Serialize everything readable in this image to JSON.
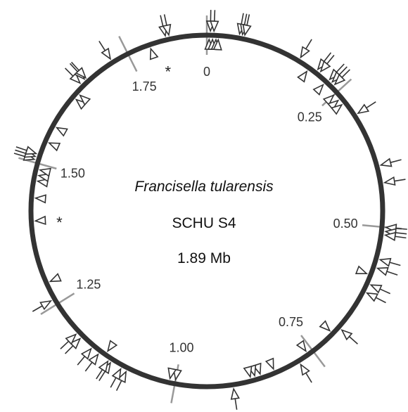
{
  "title": {
    "organism": "Francisella tularensis",
    "strain": "SCHU S4",
    "size": "1.89 Mb"
  },
  "genome_length_mb": 1.89,
  "colors": {
    "circle": "#333333",
    "scale_tick": "#999999",
    "marker": "#333333",
    "text": "#111111"
  },
  "scale_ticks": [
    {
      "position_mb": 0.0,
      "label": "0"
    },
    {
      "position_mb": 0.25,
      "label": "0.25"
    },
    {
      "position_mb": 0.5,
      "label": "0.50"
    },
    {
      "position_mb": 0.75,
      "label": "0.75"
    },
    {
      "position_mb": 1.0,
      "label": "1.00"
    },
    {
      "position_mb": 1.25,
      "label": "1.25"
    },
    {
      "position_mb": 1.5,
      "label": "1.50"
    },
    {
      "position_mb": 1.75,
      "label": "1.75"
    }
  ],
  "asterisks": [
    {
      "position_mb": 1.81,
      "label": "*"
    },
    {
      "position_mb": 1.4,
      "label": "*"
    }
  ],
  "markers": [
    {
      "pos": 0.004,
      "strand": "in"
    },
    {
      "pos": 0.01,
      "strand": "in"
    },
    {
      "pos": 0.016,
      "strand": "in"
    },
    {
      "pos": 0.02,
      "strand": "in"
    },
    {
      "pos": 0.006,
      "strand": "out"
    },
    {
      "pos": 0.012,
      "strand": "out"
    },
    {
      "pos": 0.055,
      "strand": "out"
    },
    {
      "pos": 0.06,
      "strand": "out"
    },
    {
      "pos": 0.064,
      "strand": "out"
    },
    {
      "pos": 0.165,
      "strand": "out"
    },
    {
      "pos": 0.187,
      "strand": "in"
    },
    {
      "pos": 0.2,
      "strand": "out"
    },
    {
      "pos": 0.206,
      "strand": "out"
    },
    {
      "pos": 0.226,
      "strand": "out"
    },
    {
      "pos": 0.232,
      "strand": "out"
    },
    {
      "pos": 0.238,
      "strand": "out"
    },
    {
      "pos": 0.224,
      "strand": "in"
    },
    {
      "pos": 0.25,
      "strand": "in"
    },
    {
      "pos": 0.262,
      "strand": "in"
    },
    {
      "pos": 0.272,
      "strand": "in"
    },
    {
      "pos": 0.3,
      "strand": "out"
    },
    {
      "pos": 0.395,
      "strand": "out"
    },
    {
      "pos": 0.425,
      "strand": "out"
    },
    {
      "pos": 0.5,
      "strand": "out"
    },
    {
      "pos": 0.507,
      "strand": "out"
    },
    {
      "pos": 0.513,
      "strand": "out"
    },
    {
      "pos": 0.555,
      "strand": "out"
    },
    {
      "pos": 0.57,
      "strand": "out"
    },
    {
      "pos": 0.585,
      "strand": "in"
    },
    {
      "pos": 0.6,
      "strand": "out"
    },
    {
      "pos": 0.615,
      "strand": "out"
    },
    {
      "pos": 0.69,
      "strand": "out"
    },
    {
      "pos": 0.705,
      "strand": "in"
    },
    {
      "pos": 0.76,
      "strand": "in"
    },
    {
      "pos": 0.78,
      "strand": "out"
    },
    {
      "pos": 0.825,
      "strand": "in"
    },
    {
      "pos": 0.85,
      "strand": "in"
    },
    {
      "pos": 0.86,
      "strand": "in"
    },
    {
      "pos": 0.868,
      "strand": "in"
    },
    {
      "pos": 0.9,
      "strand": "out"
    },
    {
      "pos": 1.0,
      "strand": "in"
    },
    {
      "pos": 1.01,
      "strand": "in"
    },
    {
      "pos": 1.085,
      "strand": "out"
    },
    {
      "pos": 1.095,
      "strand": "out"
    },
    {
      "pos": 1.115,
      "strand": "out"
    },
    {
      "pos": 1.12,
      "strand": "out"
    },
    {
      "pos": 1.14,
      "strand": "out"
    },
    {
      "pos": 1.155,
      "strand": "out"
    },
    {
      "pos": 1.18,
      "strand": "out"
    },
    {
      "pos": 1.19,
      "strand": "out"
    },
    {
      "pos": 1.13,
      "strand": "in"
    },
    {
      "pos": 1.26,
      "strand": "out"
    },
    {
      "pos": 1.29,
      "strand": "in"
    },
    {
      "pos": 1.4,
      "strand": "in"
    },
    {
      "pos": 1.44,
      "strand": "in"
    },
    {
      "pos": 1.47,
      "strand": "in"
    },
    {
      "pos": 1.48,
      "strand": "in"
    },
    {
      "pos": 1.49,
      "strand": "in"
    },
    {
      "pos": 1.505,
      "strand": "out"
    },
    {
      "pos": 1.51,
      "strand": "out"
    },
    {
      "pos": 1.515,
      "strand": "out"
    },
    {
      "pos": 1.54,
      "strand": "in"
    },
    {
      "pos": 1.57,
      "strand": "in"
    },
    {
      "pos": 1.63,
      "strand": "in"
    },
    {
      "pos": 1.64,
      "strand": "in"
    },
    {
      "pos": 1.655,
      "strand": "out"
    },
    {
      "pos": 1.665,
      "strand": "out"
    },
    {
      "pos": 1.668,
      "strand": "out"
    },
    {
      "pos": 1.72,
      "strand": "out"
    },
    {
      "pos": 1.79,
      "strand": "in"
    },
    {
      "pos": 1.82,
      "strand": "out"
    },
    {
      "pos": 1.826,
      "strand": "out"
    }
  ]
}
